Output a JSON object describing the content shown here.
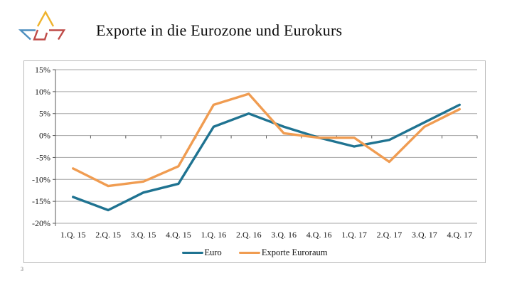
{
  "page": {
    "number": "3"
  },
  "header": {
    "title": "Exporte in die Eurozone und Eurokurs"
  },
  "logo": {
    "description": "three angular triangle strokes",
    "colors": {
      "yellow": "#efb32d",
      "blue": "#4e8fbf",
      "red": "#bf4b48"
    }
  },
  "chart_data": {
    "type": "line",
    "title": "Exporte in die Eurozone und Eurokurs",
    "categories": [
      "1.Q. 15",
      "2.Q. 15",
      "3.Q. 15",
      "4.Q. 15",
      "1.Q. 16",
      "2.Q. 16",
      "3.Q. 16",
      "4.Q. 16",
      "1.Q. 17",
      "2.Q. 17",
      "3.Q. 17",
      "4.Q. 17"
    ],
    "series": [
      {
        "name": "Euro",
        "color": "#1f7391",
        "values": [
          -14,
          -17,
          -13,
          -11,
          2,
          5,
          2,
          -0.5,
          -2.5,
          -1,
          3,
          7
        ]
      },
      {
        "name": "Exporte Euroraum",
        "color": "#f09c51",
        "values": [
          -7.5,
          -11.5,
          -10.5,
          -7,
          7,
          9.5,
          0.5,
          -0.5,
          -0.5,
          -6,
          2,
          6
        ]
      }
    ],
    "y_ticks": [
      "15%",
      "10%",
      "5%",
      "0%",
      "-5%",
      "-10%",
      "-15%",
      "-20%"
    ],
    "y_tick_values": [
      15,
      10,
      5,
      0,
      -5,
      -10,
      -15,
      -20
    ],
    "ylim": [
      -20,
      15
    ],
    "xlabel": "",
    "ylabel": "",
    "grid": "horizontal",
    "legend_position": "bottom",
    "colors": {
      "gridline": "#a6a6a6",
      "axis": "#595959",
      "plot_border": "#b9b9b9",
      "label": "#151515"
    }
  }
}
